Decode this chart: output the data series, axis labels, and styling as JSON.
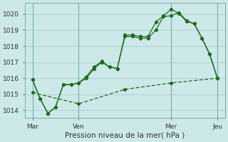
{
  "background_color": "#cce8e8",
  "grid_color": "#aacccc",
  "line_color": "#1a6b1a",
  "title": "Pression niveau de la mer( hPa )",
  "ylim": [
    1013.5,
    1020.7
  ],
  "yticks": [
    1014,
    1015,
    1016,
    1017,
    1018,
    1019,
    1020
  ],
  "xtick_labels": [
    "Mar",
    "Ven",
    "Mer",
    "Jeu"
  ],
  "xtick_positions": [
    2,
    14,
    38,
    50
  ],
  "vline_positions": [
    2,
    14,
    38,
    50
  ],
  "series1_x": [
    2,
    4,
    6,
    8,
    10,
    12,
    14,
    16,
    18,
    20,
    22,
    24,
    26,
    28,
    30,
    32,
    34,
    36,
    38,
    40,
    42,
    44,
    46,
    48,
    50
  ],
  "series1_y": [
    1015.9,
    1014.7,
    1013.8,
    1014.2,
    1015.6,
    1015.6,
    1015.7,
    1016.0,
    1016.6,
    1017.0,
    1016.7,
    1016.6,
    1018.6,
    1018.6,
    1018.5,
    1018.5,
    1019.0,
    1019.85,
    1019.9,
    1020.1,
    1019.6,
    1019.4,
    1018.5,
    1017.5,
    1016.0
  ],
  "series2_x": [
    2,
    4,
    6,
    8,
    10,
    12,
    14,
    16,
    18,
    20,
    22,
    24,
    26,
    28,
    30,
    32,
    34,
    36,
    38,
    40,
    42,
    44,
    46,
    48,
    50
  ],
  "series2_y": [
    1015.9,
    1014.7,
    1013.8,
    1014.2,
    1015.6,
    1015.6,
    1015.7,
    1016.1,
    1016.7,
    1017.05,
    1016.7,
    1016.6,
    1018.7,
    1018.7,
    1018.6,
    1018.6,
    1019.5,
    1019.9,
    1020.3,
    1020.05,
    1019.55,
    1019.4,
    1018.5,
    1017.5,
    1016.0
  ],
  "series3_x": [
    2,
    14,
    26,
    38,
    50
  ],
  "series3_y": [
    1015.1,
    1014.4,
    1015.3,
    1015.7,
    1016.0
  ]
}
